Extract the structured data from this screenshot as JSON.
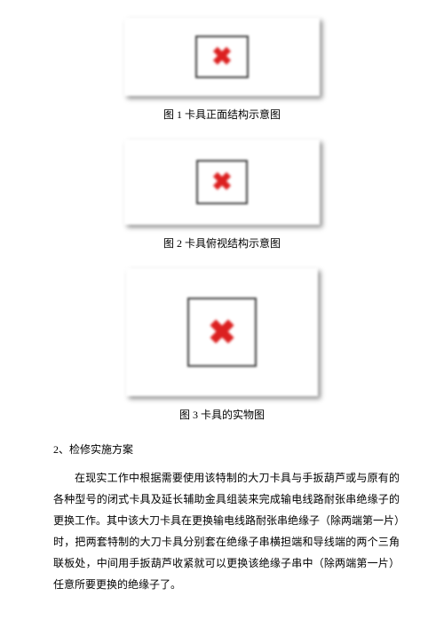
{
  "figures": {
    "fig1": {
      "caption": "图 1 卡具正面结构示意图",
      "outer_width": 220,
      "outer_height": 88,
      "inner_width": 60,
      "inner_height": 48,
      "x_size": 28,
      "x_color": "#dc2020",
      "margin_top": 10
    },
    "fig2": {
      "caption": "图 2 卡具俯视结构示意图",
      "outer_width": 220,
      "outer_height": 96,
      "inner_width": 58,
      "inner_height": 50,
      "x_size": 28,
      "x_color": "#dc2020",
      "margin_top": 6
    },
    "fig3": {
      "caption": "图 3 卡具的实物图",
      "outer_width": 216,
      "outer_height": 144,
      "inner_width": 78,
      "inner_height": 78,
      "x_size": 38,
      "x_color": "#dc2020",
      "margin_top": 6
    }
  },
  "section_heading": "2、检修实施方案",
  "paragraph": "在现实工作中根据需要使用该特制的大刀卡具与手扳葫芦或与原有的各种型号的闭式卡具及延长辅助金具组装来完成输电线路耐张串绝缘子的更换工作。其中该大刀卡具在更换输电线路耐张串绝缘子（除两端第一片）时，把两套特制的大刀卡具分别套在绝缘子串横担端和导线端的两个三角联板处，中间用手扳葫芦收紧就可以更换该绝缘子串中（除两端第一片）任意所要更换的绝缘子了。",
  "caption_fontsize": 12,
  "body_fontsize": 12,
  "text_color": "#000000",
  "background_color": "#ffffff"
}
